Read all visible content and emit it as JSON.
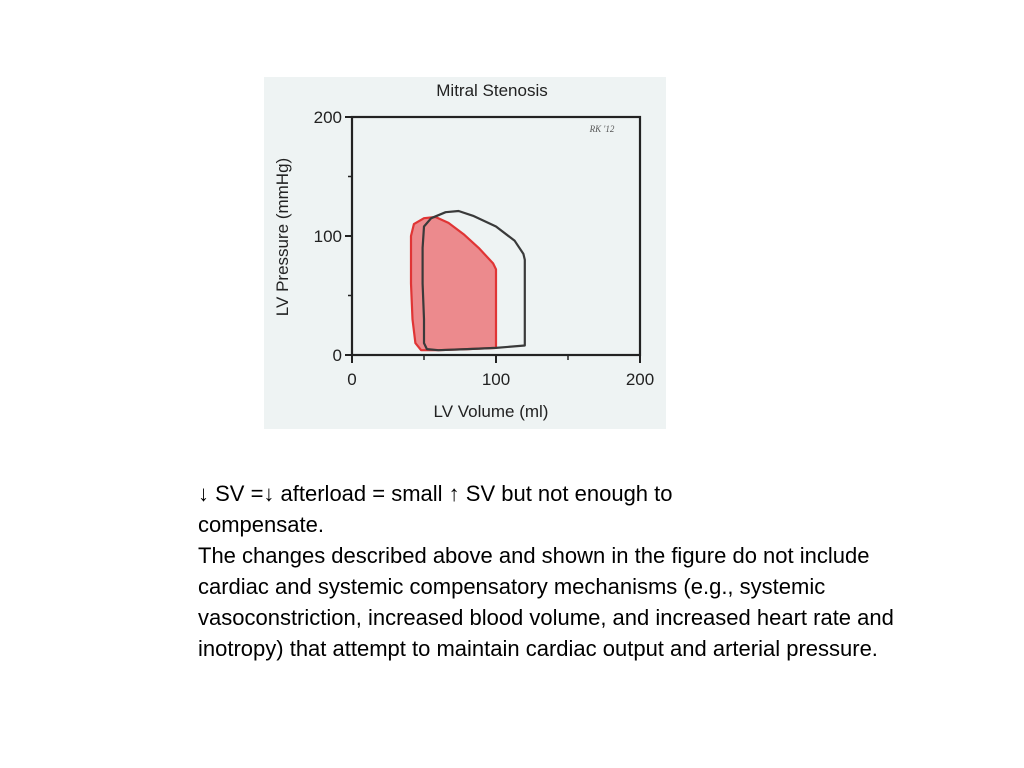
{
  "chart_data": {
    "type": "line",
    "title": "Mitral Stenosis",
    "xlabel": "LV  Volume (ml)",
    "ylabel": "LV  Pressure (mmHg)",
    "xlim": [
      0,
      200
    ],
    "ylim": [
      0,
      200
    ],
    "x_ticks": [
      "0",
      "100",
      "200"
    ],
    "y_ticks": [
      "0",
      "100",
      "200"
    ],
    "watermark": "RK '12",
    "series": [
      {
        "color": "#3a3a3a",
        "fill": "none",
        "points": [
          [
            120,
            8
          ],
          [
            100,
            6
          ],
          [
            80,
            5
          ],
          [
            60,
            4
          ],
          [
            52,
            5
          ],
          [
            50,
            10
          ],
          [
            50,
            30
          ],
          [
            49,
            60
          ],
          [
            49,
            90
          ],
          [
            50,
            108
          ],
          [
            55,
            115
          ],
          [
            65,
            120
          ],
          [
            74,
            121
          ],
          [
            84,
            117
          ],
          [
            100,
            108
          ],
          [
            113,
            96
          ],
          [
            119,
            85
          ],
          [
            120,
            80
          ],
          [
            120,
            50
          ],
          [
            120,
            8
          ]
        ]
      },
      {
        "color": "#e03535",
        "fill": "#ec8a8d",
        "points": [
          [
            100,
            6
          ],
          [
            80,
            5
          ],
          [
            60,
            4
          ],
          [
            48,
            4
          ],
          [
            44,
            10
          ],
          [
            42,
            30
          ],
          [
            41,
            60
          ],
          [
            41,
            100
          ],
          [
            43,
            110
          ],
          [
            50,
            115
          ],
          [
            58,
            116
          ],
          [
            67,
            111
          ],
          [
            78,
            101
          ],
          [
            88,
            90
          ],
          [
            98,
            77
          ],
          [
            100,
            72
          ],
          [
            100,
            40
          ],
          [
            100,
            6
          ]
        ]
      }
    ]
  },
  "caption": {
    "line1": "↓ SV =↓ afterload = small ↑ SV but not enough to compensate.",
    "line2": "The changes described above and shown in the figure do not include cardiac and systemic compensatory mechanisms (e.g., systemic vasoconstriction, increased blood volume, and increased heart rate and inotropy) that attempt to maintain cardiac output and arterial pressure."
  }
}
